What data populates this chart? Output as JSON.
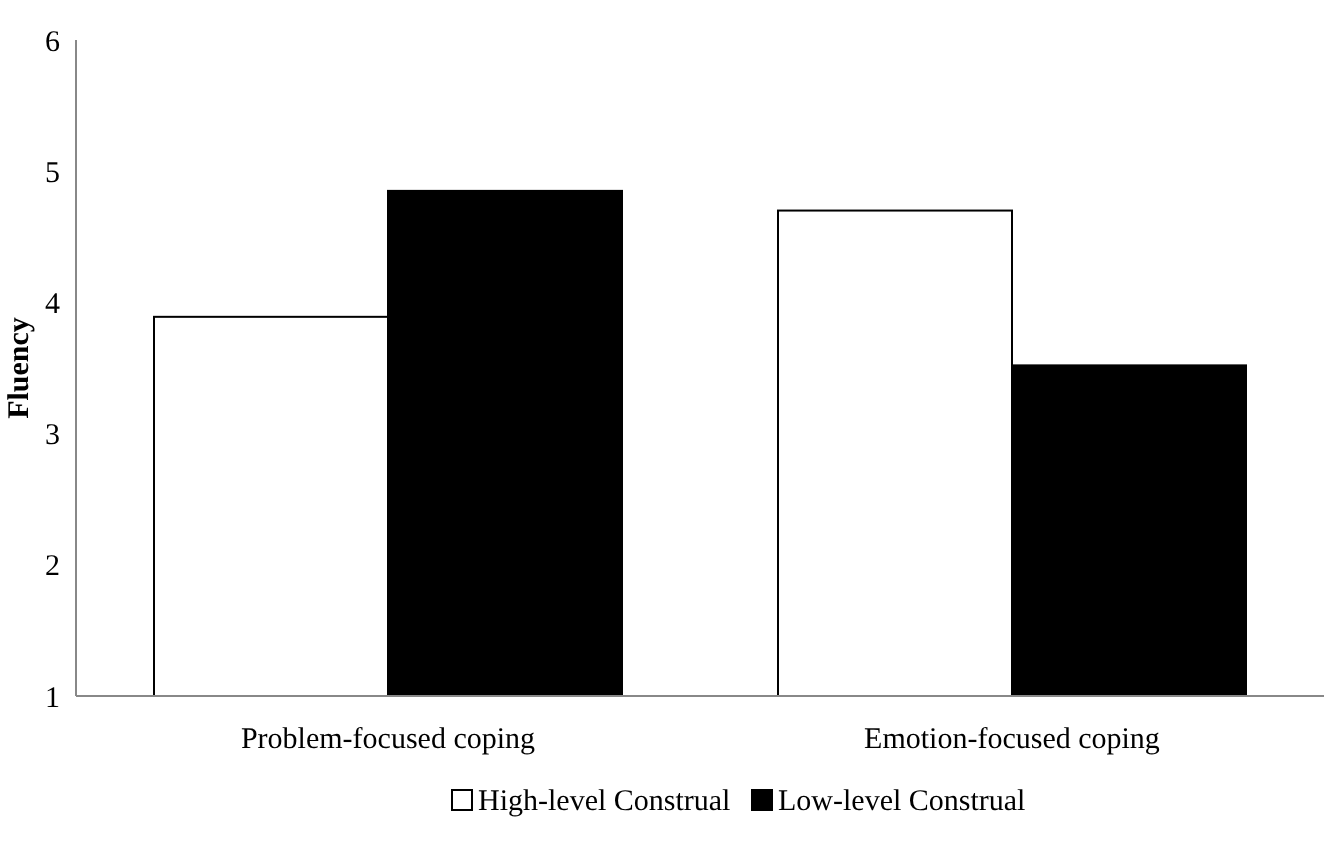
{
  "chart_data": {
    "type": "bar",
    "ylabel": "Fluency",
    "categories": [
      "Problem-focused coping",
      "Emotion-focused coping"
    ],
    "series": [
      {
        "name": "High-level Construal",
        "color": "#ffffff",
        "values": [
          3.89,
          4.7
        ]
      },
      {
        "name": "Low-level Construal",
        "color": "#000000",
        "values": [
          4.85,
          3.52
        ]
      }
    ],
    "ylim": [
      1,
      6
    ],
    "yticks": [
      1,
      2,
      3,
      4,
      5,
      6
    ],
    "grid": false,
    "legend": "bottom"
  }
}
